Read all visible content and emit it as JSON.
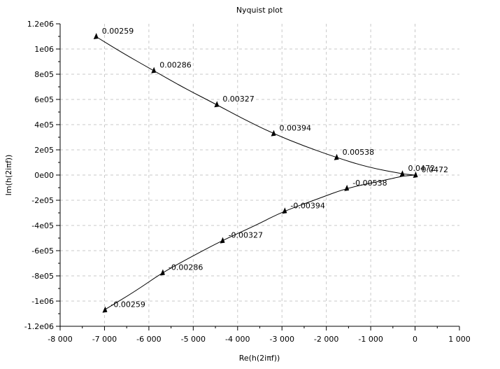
{
  "chart_data": {
    "type": "line",
    "title": "Nyquist plot",
    "xlabel": "Re(h(2iπf))",
    "ylabel": "Im(h(2iπf))",
    "xlim": [
      -8000,
      1000
    ],
    "ylim": [
      -1200000,
      1200000
    ],
    "grid": true,
    "x_ticks": [
      -8000,
      -7000,
      -6000,
      -5000,
      -4000,
      -3000,
      -2000,
      -1000,
      0,
      1000
    ],
    "x_tick_labels": [
      "-8 000",
      "-7 000",
      "-6 000",
      "-5 000",
      "-4 000",
      "-3 000",
      "-2 000",
      "-1 000",
      "0",
      "1 000"
    ],
    "y_ticks": [
      1200000,
      1000000,
      800000,
      600000,
      400000,
      200000,
      0,
      -200000,
      -400000,
      -600000,
      -800000,
      -1000000,
      -1200000
    ],
    "y_tick_labels": [
      "1.2e06",
      "1e06",
      "8e05",
      "6e05",
      "4e05",
      "2e05",
      "0e00",
      "-2e05",
      "-4e05",
      "-6e05",
      "-8e05",
      "-1e06",
      "-1.2e06"
    ],
    "colors": {
      "line": "#000000",
      "grid": "#c8c8c8",
      "background": "#ffffff"
    },
    "series": [
      {
        "x": [
          -7200,
          -6600,
          -5900,
          -5200,
          -4480,
          -3900,
          -3200,
          -2500,
          -1780,
          -1100,
          -300,
          -150,
          0
        ],
        "y": [
          1100000,
          970000,
          830000,
          690000,
          560000,
          450000,
          330000,
          230000,
          140000,
          65000,
          10000,
          5000,
          0
        ],
        "markers": [
          {
            "x": -7200,
            "y": 1100000,
            "label": "0.00259"
          },
          {
            "x": -5900,
            "y": 830000,
            "label": "0.00286"
          },
          {
            "x": -4480,
            "y": 560000,
            "label": "0.00327"
          },
          {
            "x": -3200,
            "y": 330000,
            "label": "0.00394"
          },
          {
            "x": -1780,
            "y": 140000,
            "label": "0.00538"
          },
          {
            "x": -300,
            "y": 10000,
            "label": "0.0472"
          },
          {
            "x": 0,
            "y": 0,
            "label": "0.0472"
          }
        ]
      },
      {
        "x": [
          0,
          -150,
          -300,
          -800,
          -1550,
          -2200,
          -2950,
          -3600,
          -4350,
          -5000,
          -5700,
          -6300,
          -7000
        ],
        "y": [
          0,
          -5000,
          -10000,
          -50000,
          -105000,
          -190000,
          -285000,
          -400000,
          -520000,
          -640000,
          -775000,
          -920000,
          -1070000
        ],
        "markers": [
          {
            "x": -1550,
            "y": -105000,
            "label": "-0.00538"
          },
          {
            "x": -2950,
            "y": -285000,
            "label": "-0.00394"
          },
          {
            "x": -4350,
            "y": -520000,
            "label": "-0.00327"
          },
          {
            "x": -5700,
            "y": -775000,
            "label": "-0.00286"
          },
          {
            "x": -7000,
            "y": -1070000,
            "label": "-0.00259"
          }
        ]
      }
    ]
  }
}
